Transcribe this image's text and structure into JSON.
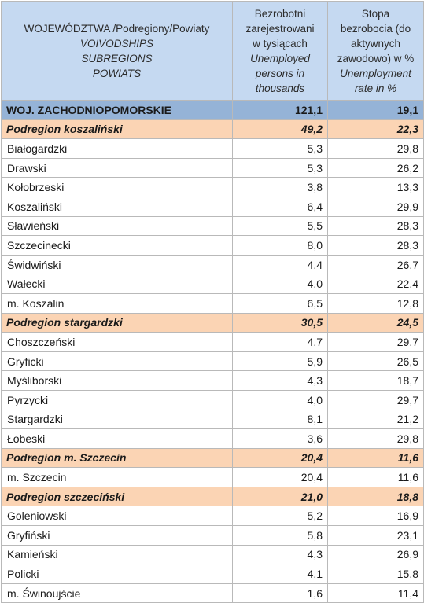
{
  "header": {
    "col1": {
      "line1": "WOJEWÓDZTWA /Podregiony/Powiaty",
      "line2": "VOIVODSHIPS",
      "line3": "SUBREGIONS",
      "line4": "POWIATS"
    },
    "col2": {
      "line1": "Bezrobotni",
      "line2": "zarejestrowani",
      "line3": "w tysiącach",
      "line4": "Unemployed",
      "line5": "persons in",
      "line6": "thousands"
    },
    "col3": {
      "line1": "Stopa",
      "line2": "bezrobocia  (do",
      "line3": "aktywnych",
      "line4": "zawodowo) w %",
      "line5": "Unemployment",
      "line6": "rate in  %"
    }
  },
  "rows": [
    {
      "kind": "voiv",
      "name": "WOJ. ZACHODNIOPOMORSKIE",
      "unemployed": "121,1",
      "rate": "19,1"
    },
    {
      "kind": "subreg",
      "name": "Podregion koszaliński",
      "unemployed": "49,2",
      "rate": "22,3"
    },
    {
      "kind": "powiat",
      "name": "Białogardzki",
      "unemployed": "5,3",
      "rate": "29,8"
    },
    {
      "kind": "powiat",
      "name": "Drawski",
      "unemployed": "5,3",
      "rate": "26,2"
    },
    {
      "kind": "powiat",
      "name": "Kołobrzeski",
      "unemployed": "3,8",
      "rate": "13,3"
    },
    {
      "kind": "powiat",
      "name": "Koszaliński",
      "unemployed": "6,4",
      "rate": "29,9"
    },
    {
      "kind": "powiat",
      "name": "Sławieński",
      "unemployed": "5,5",
      "rate": "28,3"
    },
    {
      "kind": "powiat",
      "name": "Szczecinecki",
      "unemployed": "8,0",
      "rate": "28,3"
    },
    {
      "kind": "powiat",
      "name": "Świdwiński",
      "unemployed": "4,4",
      "rate": "26,7"
    },
    {
      "kind": "powiat",
      "name": "Wałecki",
      "unemployed": "4,0",
      "rate": "22,4"
    },
    {
      "kind": "powiat",
      "name": "m. Koszalin",
      "unemployed": "6,5",
      "rate": "12,8"
    },
    {
      "kind": "subreg",
      "name": "Podregion stargardzki",
      "unemployed": "30,5",
      "rate": "24,5"
    },
    {
      "kind": "powiat",
      "name": "Choszczeński",
      "unemployed": "4,7",
      "rate": "29,7"
    },
    {
      "kind": "powiat",
      "name": "Gryficki",
      "unemployed": "5,9",
      "rate": "26,5"
    },
    {
      "kind": "powiat",
      "name": "Myśliborski",
      "unemployed": "4,3",
      "rate": "18,7"
    },
    {
      "kind": "powiat",
      "name": "Pyrzycki",
      "unemployed": "4,0",
      "rate": "29,7"
    },
    {
      "kind": "powiat",
      "name": "Stargardzki",
      "unemployed": "8,1",
      "rate": "21,2"
    },
    {
      "kind": "powiat",
      "name": "Łobeski",
      "unemployed": "3,6",
      "rate": "29,8"
    },
    {
      "kind": "subreg",
      "name": "Podregion m. Szczecin",
      "unemployed": "20,4",
      "rate": "11,6"
    },
    {
      "kind": "powiat",
      "name": "m. Szczecin",
      "unemployed": "20,4",
      "rate": "11,6"
    },
    {
      "kind": "subreg",
      "name": "Podregion szczeciński",
      "unemployed": "21,0",
      "rate": "18,8"
    },
    {
      "kind": "powiat",
      "name": "Goleniowski",
      "unemployed": "5,2",
      "rate": "16,9"
    },
    {
      "kind": "powiat",
      "name": "Gryfiński",
      "unemployed": "5,8",
      "rate": "23,1"
    },
    {
      "kind": "powiat",
      "name": "Kamieński",
      "unemployed": "4,3",
      "rate": "26,9"
    },
    {
      "kind": "powiat",
      "name": "Policki",
      "unemployed": "4,1",
      "rate": "15,8"
    },
    {
      "kind": "powiat",
      "name": "m.  Świnoujście",
      "unemployed": "1,6",
      "rate": "11,4"
    }
  ]
}
